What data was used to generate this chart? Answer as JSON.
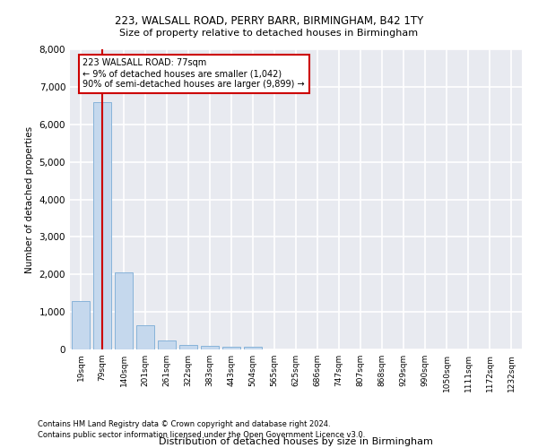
{
  "title_line1": "223, WALSALL ROAD, PERRY BARR, BIRMINGHAM, B42 1TY",
  "title_line2": "Size of property relative to detached houses in Birmingham",
  "xlabel": "Distribution of detached houses by size in Birmingham",
  "ylabel": "Number of detached properties",
  "footnote1": "Contains HM Land Registry data © Crown copyright and database right 2024.",
  "footnote2": "Contains public sector information licensed under the Open Government Licence v3.0.",
  "bar_labels": [
    "19sqm",
    "79sqm",
    "140sqm",
    "201sqm",
    "261sqm",
    "322sqm",
    "383sqm",
    "443sqm",
    "504sqm",
    "565sqm",
    "625sqm",
    "686sqm",
    "747sqm",
    "807sqm",
    "868sqm",
    "929sqm",
    "990sqm",
    "1050sqm",
    "1111sqm",
    "1172sqm",
    "1232sqm"
  ],
  "bar_values": [
    1300,
    6600,
    2060,
    640,
    240,
    130,
    90,
    60,
    60,
    0,
    0,
    0,
    0,
    0,
    0,
    0,
    0,
    0,
    0,
    0,
    0
  ],
  "bar_color": "#c5d8ed",
  "bar_edge_color": "#7aacd6",
  "background_color": "#e8eaf0",
  "grid_color": "#ffffff",
  "vline_x": 1,
  "vline_color": "#cc0000",
  "annotation_text": "223 WALSALL ROAD: 77sqm\n← 9% of detached houses are smaller (1,042)\n90% of semi-detached houses are larger (9,899) →",
  "annotation_box_color": "#cc0000",
  "ylim": [
    0,
    8000
  ],
  "yticks": [
    0,
    1000,
    2000,
    3000,
    4000,
    5000,
    6000,
    7000,
    8000
  ]
}
